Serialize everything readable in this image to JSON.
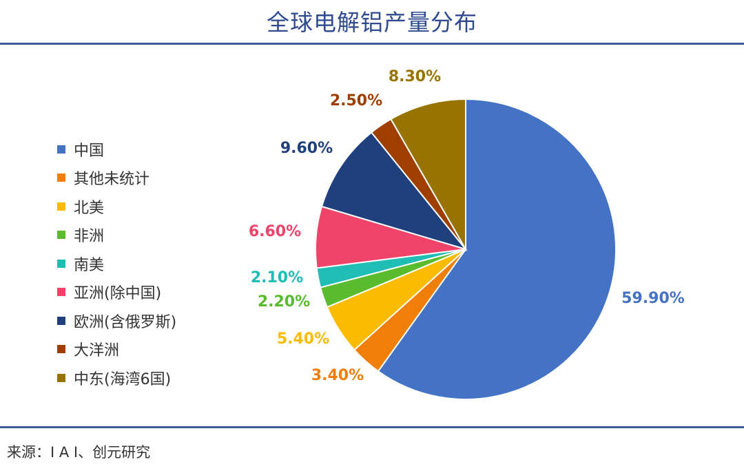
{
  "chart_data": {
    "type": "pie",
    "title": "全球电解铝产量分布",
    "categories": [
      "中国",
      "其他未统计",
      "北美",
      "非洲",
      "南美",
      "亚洲(除中国)",
      "欧洲(含俄罗斯)",
      "大洋洲",
      "中东(海湾6国)"
    ],
    "values": [
      59.9,
      3.4,
      5.4,
      2.2,
      2.1,
      6.6,
      9.6,
      2.5,
      8.3
    ],
    "labels": [
      "59.90%",
      "3.40%",
      "5.40%",
      "2.20%",
      "2.10%",
      "6.60%",
      "9.60%",
      "2.50%",
      "8.30%"
    ],
    "colors": [
      "#4472c4",
      "#f07f09",
      "#fbbb00",
      "#5bbb2e",
      "#1fbdb4",
      "#f0436a",
      "#1f3f7d",
      "#9e3f00",
      "#997300"
    ],
    "legend_position": "left",
    "start": "12 o'clock",
    "direction": "clockwise"
  },
  "source": "来源：I A I、创元研究"
}
